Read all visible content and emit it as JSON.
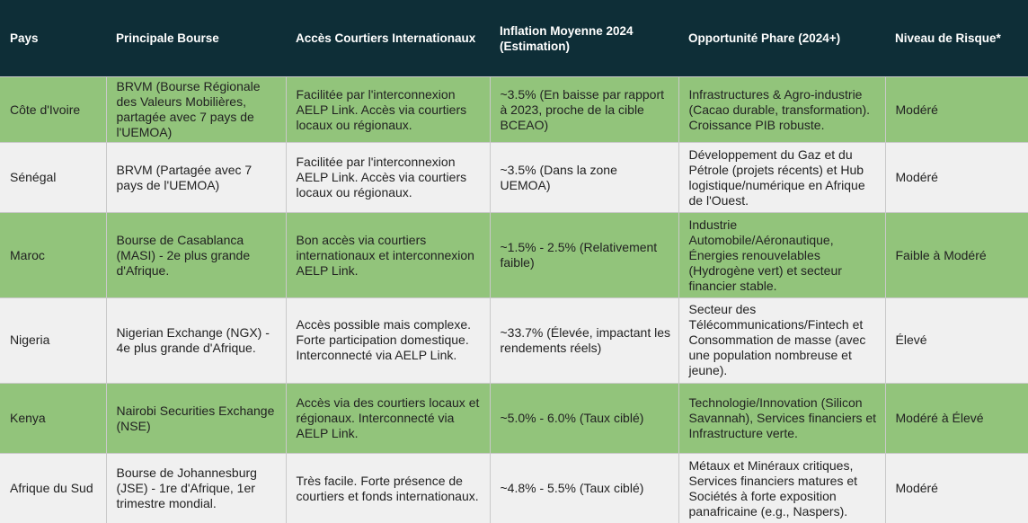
{
  "table": {
    "header": [
      "Pays",
      "Principale Bourse",
      "Accès Courtiers Internationaux",
      "Inflation Moyenne 2024 (Estimation)",
      "Opportunité Phare (2024+)",
      "Niveau de Risque*"
    ],
    "rows": [
      [
        "Côte d'Ivoire",
        "BRVM (Bourse Régionale des Valeurs Mobilières, partagée avec 7 pays de l'UEMOA)",
        "Facilitée par l'interconnexion AELP Link. Accès via courtiers locaux ou régionaux.",
        "~3.5% (En baisse par rapport à 2023, proche de la cible BCEAO)",
        "Infrastructures & Agro-industrie (Cacao durable, transformation). Croissance PIB robuste.",
        "Modéré"
      ],
      [
        "Sénégal",
        "BRVM (Partagée avec 7 pays de l'UEMOA)",
        "Facilitée par l'interconnexion AELP Link. Accès via courtiers locaux ou régionaux.",
        "~3.5% (Dans la zone UEMOA)",
        "Développement du Gaz et du Pétrole (projets récents) et Hub logistique/numérique en Afrique de l'Ouest.",
        "Modéré"
      ],
      [
        "Maroc",
        "Bourse de Casablanca (MASI) - 2e plus grande d'Afrique.",
        "Bon accès via courtiers internationaux et interconnexion AELP Link.",
        "~1.5% - 2.5% (Relativement faible)",
        "Industrie Automobile/Aéronautique, Énergies renouvelables (Hydrogène vert) et secteur financier stable.",
        "Faible à Modéré"
      ],
      [
        "Nigeria",
        "Nigerian Exchange (NGX) - 4e plus grande d'Afrique.",
        "Accès possible mais complexe. Forte participation domestique. Interconnecté via AELP Link.",
        "~33.7% (Élevée, impactant les rendements réels)",
        "Secteur des Télécommunications/Fintech et Consommation de masse (avec une population nombreuse et jeune).",
        "Élevé"
      ],
      [
        "Kenya",
        "Nairobi Securities Exchange (NSE)",
        "Accès via des courtiers locaux et régionaux. Interconnecté via AELP Link.",
        "~5.0% - 6.0% (Taux ciblé)",
        "Technologie/Innovation (Silicon Savannah), Services financiers et Infrastructure verte.",
        "Modéré à Élevé"
      ],
      [
        "Afrique du Sud",
        "Bourse de Johannesburg (JSE) - 1re d'Afrique, 1er trimestre mondial.",
        "Très facile. Forte présence de courtiers et fonds internationaux.",
        "~4.8% - 5.5% (Taux ciblé)",
        "Métaux et Minéraux critiques, Services financiers matures et Sociétés à forte exposition panafricaine (e.g., Naspers).",
        "Modéré"
      ]
    ]
  }
}
